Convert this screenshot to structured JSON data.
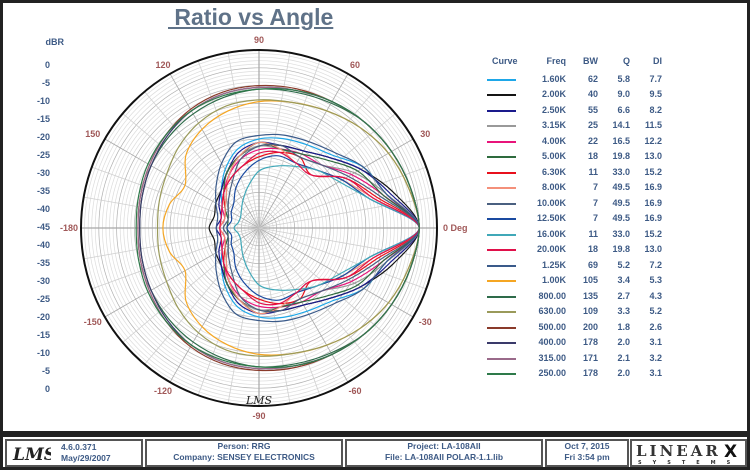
{
  "chart_data": {
    "type": "polar-line",
    "title": " Ratio vs Angle",
    "radial_axis_label": "dBR",
    "radial_ticks": [
      "0",
      "-5",
      "-10",
      "-15",
      "-20",
      "-25",
      "-30",
      "-35",
      "-40",
      "-45",
      "-40",
      "-35",
      "-30",
      "-25",
      "-20",
      "-15",
      "-10",
      "-5",
      "0"
    ],
    "rlim": [
      -45,
      5
    ],
    "angle_labels": [
      {
        "angle": 90,
        "text": "90"
      },
      {
        "angle": 60,
        "text": "60"
      },
      {
        "angle": 120,
        "text": "120"
      },
      {
        "angle": 30,
        "text": "30"
      },
      {
        "angle": 150,
        "text": "150"
      },
      {
        "angle": 0,
        "text": "0 Deg"
      },
      {
        "angle": 180,
        "text": "-180"
      },
      {
        "angle": -30,
        "text": "-30"
      },
      {
        "angle": -150,
        "text": "-150"
      },
      {
        "angle": -60,
        "text": "-60"
      },
      {
        "angle": -120,
        "text": "-120"
      },
      {
        "angle": -90,
        "text": "-90"
      }
    ],
    "angle_step_deg": 15,
    "grid": true,
    "legend_placement": "right",
    "legend_headers": {
      "curve": "Curve",
      "freq": "Freq",
      "bw": "BW",
      "q": "Q",
      "di": "DI"
    },
    "series": [
      {
        "freq": "1.60K",
        "bw": "62",
        "q": "5.8",
        "di": "7.7",
        "color": "#1ea7e8",
        "values": [
          0,
          -8,
          -11,
          -16,
          -18,
          -19,
          -20,
          -22,
          -26,
          -30,
          -33,
          -34,
          -34,
          -34,
          -33,
          -30,
          -26,
          -22,
          -20,
          -19,
          -18,
          -16,
          -11,
          -8
        ]
      },
      {
        "freq": "2.00K",
        "bw": "40",
        "q": "9.0",
        "di": "9.5",
        "color": "#151515",
        "values": [
          0,
          -6,
          -12,
          -17,
          -20,
          -21,
          -22,
          -24,
          -27,
          -30,
          -31,
          -32,
          -31,
          -32,
          -31,
          -30,
          -27,
          -24,
          -22,
          -21,
          -20,
          -17,
          -12,
          -6
        ]
      },
      {
        "freq": "2.50K",
        "bw": "55",
        "q": "6.6",
        "di": "8.2",
        "color": "#1a1a8c",
        "values": [
          0,
          -7,
          -12,
          -17,
          -20,
          -21,
          -21,
          -23,
          -27,
          -30,
          -32,
          -34,
          -33,
          -34,
          -32,
          -30,
          -27,
          -23,
          -21,
          -21,
          -20,
          -17,
          -12,
          -7
        ]
      },
      {
        "freq": "3.15K",
        "bw": "25",
        "q": "14.1",
        "di": "11.5",
        "color": "#999999",
        "values": [
          0,
          -8,
          -14,
          -20,
          -22,
          -22,
          -22,
          -24,
          -28,
          -32,
          -35,
          -36,
          -35,
          -36,
          -35,
          -32,
          -28,
          -24,
          -22,
          -22,
          -22,
          -20,
          -14,
          -8
        ]
      },
      {
        "freq": "4.00K",
        "bw": "22",
        "q": "16.5",
        "di": "12.2",
        "color": "#e8147a",
        "values": [
          0,
          -9,
          -15,
          -20,
          -21,
          -22,
          -23,
          -25,
          -28,
          -31,
          -33,
          -35,
          -34,
          -35,
          -33,
          -31,
          -28,
          -25,
          -23,
          -22,
          -21,
          -20,
          -15,
          -9
        ]
      },
      {
        "freq": "5.00K",
        "bw": "18",
        "q": "19.8",
        "di": "13.0",
        "color": "#2e6b3e",
        "values": [
          0,
          -9,
          -13,
          -18,
          -21,
          -22,
          -21,
          -24,
          -27,
          -31,
          -34,
          -36,
          -36,
          -36,
          -34,
          -31,
          -27,
          -24,
          -21,
          -22,
          -21,
          -18,
          -13,
          -9
        ]
      },
      {
        "freq": "6.30K",
        "bw": "11",
        "q": "33.0",
        "di": "15.2",
        "color": "#e8101c",
        "values": [
          0,
          -11,
          -17,
          -24,
          -22,
          -23,
          -25,
          -27,
          -29,
          -31,
          -34,
          -35,
          -34,
          -35,
          -34,
          -31,
          -29,
          -27,
          -25,
          -23,
          -22,
          -24,
          -17,
          -11
        ]
      },
      {
        "freq": "8.00K",
        "bw": "7",
        "q": "49.5",
        "di": "16.9",
        "color": "#f4907a",
        "values": [
          0,
          -12,
          -18,
          -22,
          -24,
          -22,
          -21,
          -24,
          -28,
          -32,
          -34,
          -35,
          -34,
          -35,
          -34,
          -32,
          -28,
          -24,
          -21,
          -22,
          -24,
          -22,
          -18,
          -12
        ]
      },
      {
        "freq": "10.00K",
        "bw": "7",
        "q": "49.5",
        "di": "16.9",
        "color": "#4a6080",
        "values": [
          0,
          -10,
          -16,
          -20,
          -22,
          -21,
          -22,
          -25,
          -30,
          -33,
          -35,
          -36,
          -35,
          -36,
          -35,
          -33,
          -30,
          -25,
          -22,
          -21,
          -22,
          -20,
          -16,
          -10
        ]
      },
      {
        "freq": "12.50K",
        "bw": "7",
        "q": "49.5",
        "di": "16.9",
        "color": "#1a4aa0",
        "values": [
          0,
          -13,
          -18,
          -22,
          -24,
          -24,
          -26,
          -29,
          -32,
          -35,
          -36,
          -37,
          -36,
          -37,
          -36,
          -35,
          -32,
          -29,
          -26,
          -24,
          -24,
          -22,
          -18,
          -13
        ]
      },
      {
        "freq": "16.00K",
        "bw": "11",
        "q": "33.0",
        "di": "15.2",
        "color": "#40a8b8",
        "values": [
          0,
          -13,
          -19,
          -22,
          -25,
          -27,
          -29,
          -33,
          -36,
          -38,
          -39,
          -39,
          -38,
          -39,
          -39,
          -38,
          -36,
          -33,
          -29,
          -27,
          -25,
          -22,
          -19,
          -13
        ]
      },
      {
        "freq": "20.00K",
        "bw": "18",
        "q": "19.8",
        "di": "13.0",
        "color": "#e0104a",
        "values": [
          0,
          -12,
          -17,
          -24,
          -24,
          -23,
          -24,
          -27,
          -29,
          -31,
          -33,
          -34,
          -34,
          -34,
          -33,
          -31,
          -29,
          -27,
          -24,
          -23,
          -24,
          -24,
          -17,
          -12
        ]
      },
      {
        "freq": "1.25K",
        "bw": "69",
        "q": "5.2",
        "di": "7.2",
        "color": "#3a5a8a",
        "values": [
          0,
          -8,
          -11,
          -15,
          -17,
          -18,
          -19,
          -20,
          -24,
          -28,
          -31,
          -33,
          -33,
          -33,
          -31,
          -28,
          -24,
          -20,
          -19,
          -18,
          -17,
          -15,
          -11,
          -8
        ]
      },
      {
        "freq": "1.00K",
        "bw": "105",
        "q": "3.4",
        "di": "5.3",
        "color": "#f5a623",
        "values": [
          0,
          -1.5,
          -3,
          -5,
          -7,
          -8.5,
          -9.5,
          -11,
          -13,
          -16,
          -21,
          -19,
          -18,
          -19,
          -21,
          -16,
          -13,
          -11,
          -9.5,
          -8.5,
          -7,
          -5,
          -3,
          -1.5
        ]
      },
      {
        "freq": "800.00",
        "bw": "135",
        "q": "2.7",
        "di": "4.3",
        "color": "#2e6b4a",
        "values": [
          0,
          -1,
          -2,
          -3,
          -4.5,
          -5.5,
          -6,
          -7,
          -8,
          -9,
          -10,
          -11,
          -11.5,
          -11,
          -10,
          -9,
          -8,
          -7,
          -6,
          -5.5,
          -4.5,
          -3,
          -2,
          -1
        ]
      },
      {
        "freq": "630.00",
        "bw": "109",
        "q": "3.3",
        "di": "5.2",
        "color": "#9a9a5a",
        "values": [
          0,
          -1.5,
          -3,
          -5,
          -7,
          -8.5,
          -9,
          -9.5,
          -11,
          -13,
          -15,
          -16,
          -16.5,
          -16,
          -15,
          -13,
          -11,
          -9.5,
          -9,
          -8.5,
          -7,
          -5,
          -3,
          -1.5
        ]
      },
      {
        "freq": "500.00",
        "bw": "200",
        "q": "1.8",
        "di": "2.6",
        "color": "#8a3a2a",
        "values": [
          0,
          -1,
          -2,
          -3,
          -4,
          -4.5,
          -5,
          -5.5,
          -6.5,
          -8,
          -9.5,
          -10.5,
          -11,
          -10.5,
          -9.5,
          -8,
          -6.5,
          -5.5,
          -5,
          -4.5,
          -4,
          -3,
          -2,
          -1
        ]
      },
      {
        "freq": "400.00",
        "bw": "178",
        "q": "2.0",
        "di": "3.1",
        "color": "#3a3a6a",
        "values": [
          0,
          -1,
          -2,
          -3,
          -4,
          -5,
          -5.5,
          -6,
          -7,
          -8.5,
          -10,
          -11,
          -11.5,
          -11,
          -10,
          -8.5,
          -7,
          -6,
          -5.5,
          -5,
          -4,
          -3,
          -2,
          -1
        ]
      },
      {
        "freq": "315.00",
        "bw": "171",
        "q": "2.1",
        "di": "3.2",
        "color": "#9a6a8a",
        "values": [
          0,
          -1,
          -2,
          -3,
          -4,
          -5,
          -5.5,
          -6,
          -7,
          -8,
          -9.5,
          -10.5,
          -11,
          -10.5,
          -9.5,
          -8,
          -7,
          -6,
          -5.5,
          -5,
          -4,
          -3,
          -2,
          -1
        ]
      },
      {
        "freq": "250.00",
        "bw": "178",
        "q": "2.0",
        "di": "3.1",
        "color": "#2e7a4a",
        "values": [
          0,
          -1,
          -2,
          -3,
          -4,
          -5,
          -6,
          -6.5,
          -7,
          -8,
          -9,
          -10,
          -10.5,
          -10,
          -9,
          -8,
          -7,
          -6.5,
          -6,
          -5,
          -4,
          -3,
          -2,
          -1
        ]
      }
    ]
  },
  "footer": {
    "version": "4.6.0.371",
    "build_date": "May/29/2007",
    "person": "Person: RRG",
    "company": "Company: SENSEY ELECTRONICS",
    "project": "Project: LA-108AII",
    "file": "File: LA-108AII POLAR-1.1.lib",
    "date": "Oct  7, 2015",
    "time": "Fri  3:54 pm",
    "lms_logo": "LMS",
    "brand_logo": "LINEARX SYSTEMS"
  }
}
